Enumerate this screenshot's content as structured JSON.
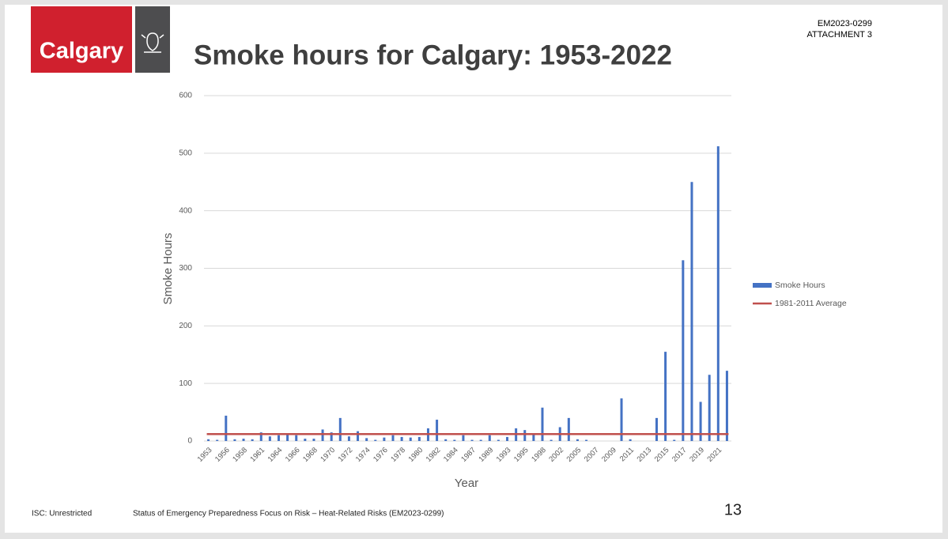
{
  "slide": {
    "logo": "Calgary",
    "doc_id": "EM2023-0299",
    "attachment": "ATTACHMENT 3",
    "classification": "ISC: Unrestricted",
    "footer": "Status of Emergency Preparedness Focus on Risk – Heat-Related Risks (EM2023-0299)",
    "page": "13"
  },
  "chart_data": {
    "type": "bar",
    "title": "Smoke hours for Calgary: 1953-2022",
    "x_label": "Year",
    "y_label": "Smoke Hours",
    "categories": [
      "1953",
      null,
      "1956",
      null,
      "1958",
      null,
      "1961",
      null,
      "1964",
      null,
      "1966",
      null,
      "1968",
      null,
      "1970",
      null,
      "1972",
      null,
      "1974",
      null,
      "1976",
      null,
      "1978",
      null,
      "1980",
      null,
      "1982",
      null,
      "1984",
      null,
      "1987",
      null,
      "1989",
      null,
      "1993",
      null,
      "1995",
      null,
      "1998",
      null,
      "2002",
      null,
      "2005",
      null,
      "2007",
      null,
      "2009",
      null,
      "2011",
      null,
      "2013",
      null,
      "2015",
      null,
      "2017",
      null,
      "2019",
      null,
      "2021",
      null
    ],
    "series": [
      {
        "name": "Smoke Hours",
        "color": "#4472c4",
        "values": [
          3,
          2,
          44,
          3,
          4,
          3,
          15,
          8,
          10,
          12,
          10,
          4,
          4,
          20,
          15,
          40,
          8,
          17,
          5,
          2,
          6,
          10,
          7,
          6,
          7,
          22,
          37,
          3,
          2,
          10,
          2,
          2,
          10,
          2,
          7,
          22,
          19,
          12,
          58,
          2,
          24,
          40,
          3,
          2,
          0,
          0,
          0,
          74,
          3,
          0,
          0,
          40,
          155,
          2,
          314,
          450,
          68,
          115,
          512,
          122
        ]
      }
    ],
    "average_line": {
      "name": "1981-2011 Average",
      "color": "#c0504d",
      "value": 12
    },
    "ylim": [
      0,
      600
    ],
    "yticks": [
      0,
      100,
      200,
      300,
      400,
      500,
      600
    ],
    "grid": true,
    "legend": "right"
  }
}
